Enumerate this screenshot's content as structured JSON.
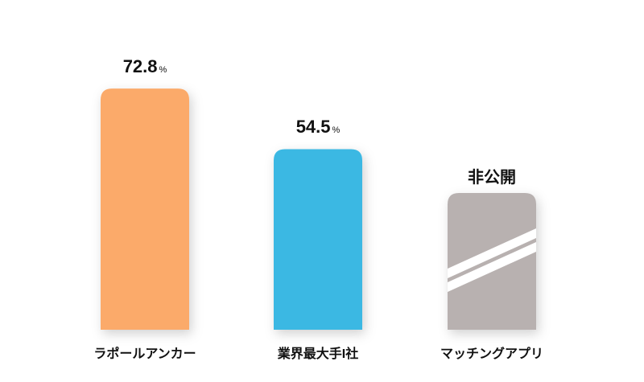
{
  "chart_data": {
    "type": "bar",
    "categories": [
      "ラポールアンカー",
      "業界最大手I社",
      "マッチングアプリ"
    ],
    "values": [
      72.8,
      54.5,
      null
    ],
    "value_labels": [
      "72.8",
      "54.5",
      "非公開"
    ],
    "unit": "%",
    "colors": [
      "#FBAA6B",
      "#3AB8E3",
      "#B8B1B0"
    ],
    "undisclosed_label": "非公開"
  }
}
